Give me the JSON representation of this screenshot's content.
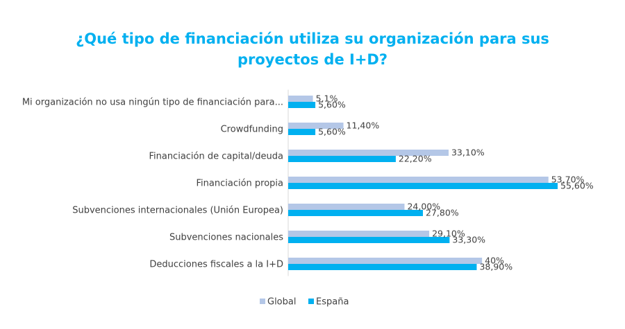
{
  "chart_data": {
    "type": "bar",
    "orientation": "horizontal",
    "title_lines": [
      "¿Qué tipo de financiación utiliza su organización para sus",
      "proyectos de I+D?"
    ],
    "categories": [
      "Mi organización no usa ningún tipo de financiación para...",
      "Crowdfunding",
      "Financiación de capital/deuda",
      "Financiación propia",
      "Subvenciones internacionales (Unión Europea)",
      "Subvenciones nacionales",
      "Deducciones fiscales a la I+D"
    ],
    "series": [
      {
        "name": "Global",
        "color": "#b4c7e7",
        "values": [
          5.1,
          11.4,
          33.1,
          53.7,
          24.0,
          29.1,
          40.0
        ],
        "labels": [
          "5,1%",
          "11,40%",
          "33,10%",
          "53,70%",
          "24,00%",
          "29,10%",
          "40%"
        ]
      },
      {
        "name": "España",
        "color": "#00b0f0",
        "values": [
          5.6,
          5.6,
          22.2,
          55.6,
          27.8,
          33.3,
          38.9
        ],
        "labels": [
          "5,60%",
          "5,60%",
          "22,20%",
          "55,60%",
          "27,80%",
          "33,30%",
          "38,90%"
        ]
      }
    ],
    "xlim": [
      0,
      55.6
    ],
    "grid": false,
    "legend_position": "bottom",
    "title_color": "#00b0f0"
  }
}
